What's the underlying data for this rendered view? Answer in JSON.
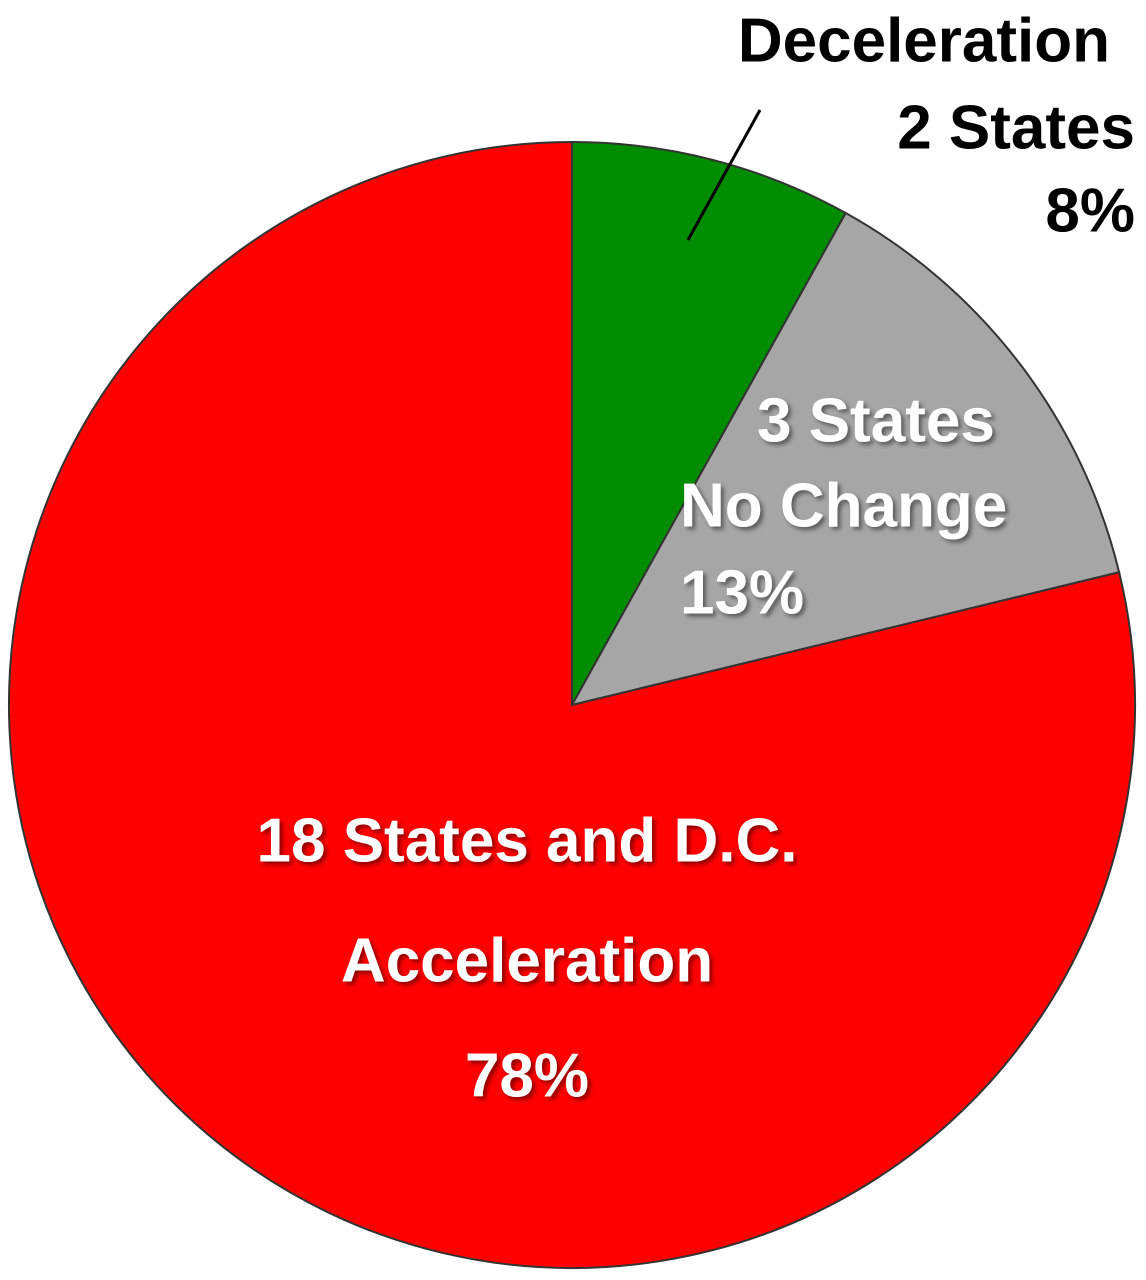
{
  "chart_data": {
    "type": "pie",
    "label_lines": [
      [
        "Deceleration",
        "2 States"
      ],
      [
        "3 States",
        "No Change"
      ],
      [
        "18 States and D.C.",
        "Acceleration"
      ]
    ],
    "values": [
      8,
      13,
      78
    ],
    "value_labels": [
      "8%",
      "13%",
      "78%"
    ],
    "colors": [
      "#008c00",
      "#a6a6a6",
      "#ff0000"
    ]
  }
}
